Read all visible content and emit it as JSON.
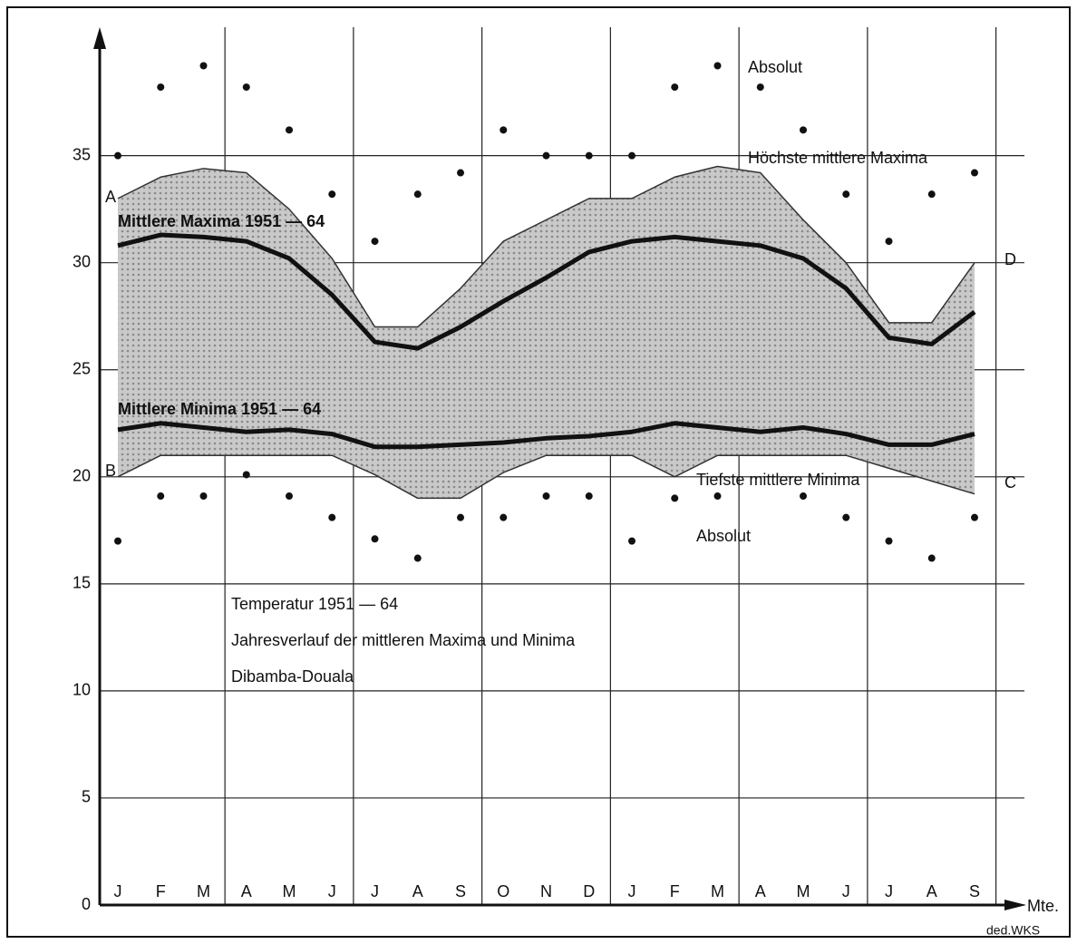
{
  "chart_data": {
    "type": "line",
    "title": "Temperatur 1951 — 64",
    "subtitle": "Jahresverlauf der mittleren Maxima und Minima",
    "location": "Dibamba-Douala",
    "x_label": "Mte.",
    "credit": "ded.WKS",
    "categories": [
      "J",
      "F",
      "M",
      "A",
      "M",
      "J",
      "J",
      "A",
      "S",
      "O",
      "N",
      "D",
      "J",
      "F",
      "M",
      "A",
      "M",
      "J",
      "J",
      "A",
      "S"
    ],
    "ylim": [
      0,
      41
    ],
    "yticks": [
      0,
      5,
      10,
      15,
      20,
      25,
      30,
      35
    ],
    "grid": true,
    "band": true,
    "annotations": [
      "A",
      "B",
      "C",
      "D"
    ],
    "series": [
      {
        "name": "Höchste mittlere Maxima",
        "color": "#333333",
        "style": "edge",
        "values": [
          33,
          34,
          34.4,
          34.2,
          32.5,
          30.2,
          27,
          27,
          28.8,
          31,
          32,
          33,
          33,
          34,
          34.5,
          34.2,
          32,
          30,
          27.2,
          27.2,
          30
        ]
      },
      {
        "name": "Mittlere Maxima 1951 — 64",
        "color": "#111111",
        "style": "thick",
        "values": [
          30.8,
          31.3,
          31.2,
          31,
          30.2,
          28.5,
          26.3,
          26,
          27,
          28.2,
          29.3,
          30.5,
          31,
          31.2,
          31,
          30.8,
          30.2,
          28.8,
          26.5,
          26.2,
          27.7
        ]
      },
      {
        "name": "Mittlere Minima 1951 — 64",
        "color": "#111111",
        "style": "thick",
        "values": [
          22.2,
          22.5,
          22.3,
          22.1,
          22.2,
          22,
          21.4,
          21.4,
          21.5,
          21.6,
          21.8,
          21.9,
          22.1,
          22.5,
          22.3,
          22.1,
          22.3,
          22,
          21.5,
          21.5,
          22
        ]
      },
      {
        "name": "Tiefste mittlere Minima",
        "color": "#333333",
        "style": "edge",
        "values": [
          20,
          21,
          21,
          21,
          21,
          21,
          20.1,
          19,
          19,
          20.2,
          21,
          21,
          21,
          20,
          21,
          21,
          21,
          21,
          20.4,
          19.8,
          19.2
        ]
      },
      {
        "name": "Absolut",
        "color": "#111111",
        "style": "dots",
        "values": [
          35,
          38.2,
          39.2,
          38.2,
          36.2,
          33.2,
          31,
          33.2,
          34.2,
          36.2,
          35,
          35,
          35,
          38.2,
          39.2,
          38.2,
          36.2,
          33.2,
          31,
          33.2,
          34.2
        ]
      },
      {
        "name": "Absolut",
        "color": "#111111",
        "style": "dots",
        "values": [
          17,
          19.1,
          19.1,
          20.1,
          19.1,
          18.1,
          17.1,
          16.2,
          18.1,
          18.1,
          19.1,
          19.1,
          17,
          19,
          19.1,
          null,
          19.1,
          18.1,
          17,
          16.2,
          18.1
        ]
      }
    ]
  }
}
